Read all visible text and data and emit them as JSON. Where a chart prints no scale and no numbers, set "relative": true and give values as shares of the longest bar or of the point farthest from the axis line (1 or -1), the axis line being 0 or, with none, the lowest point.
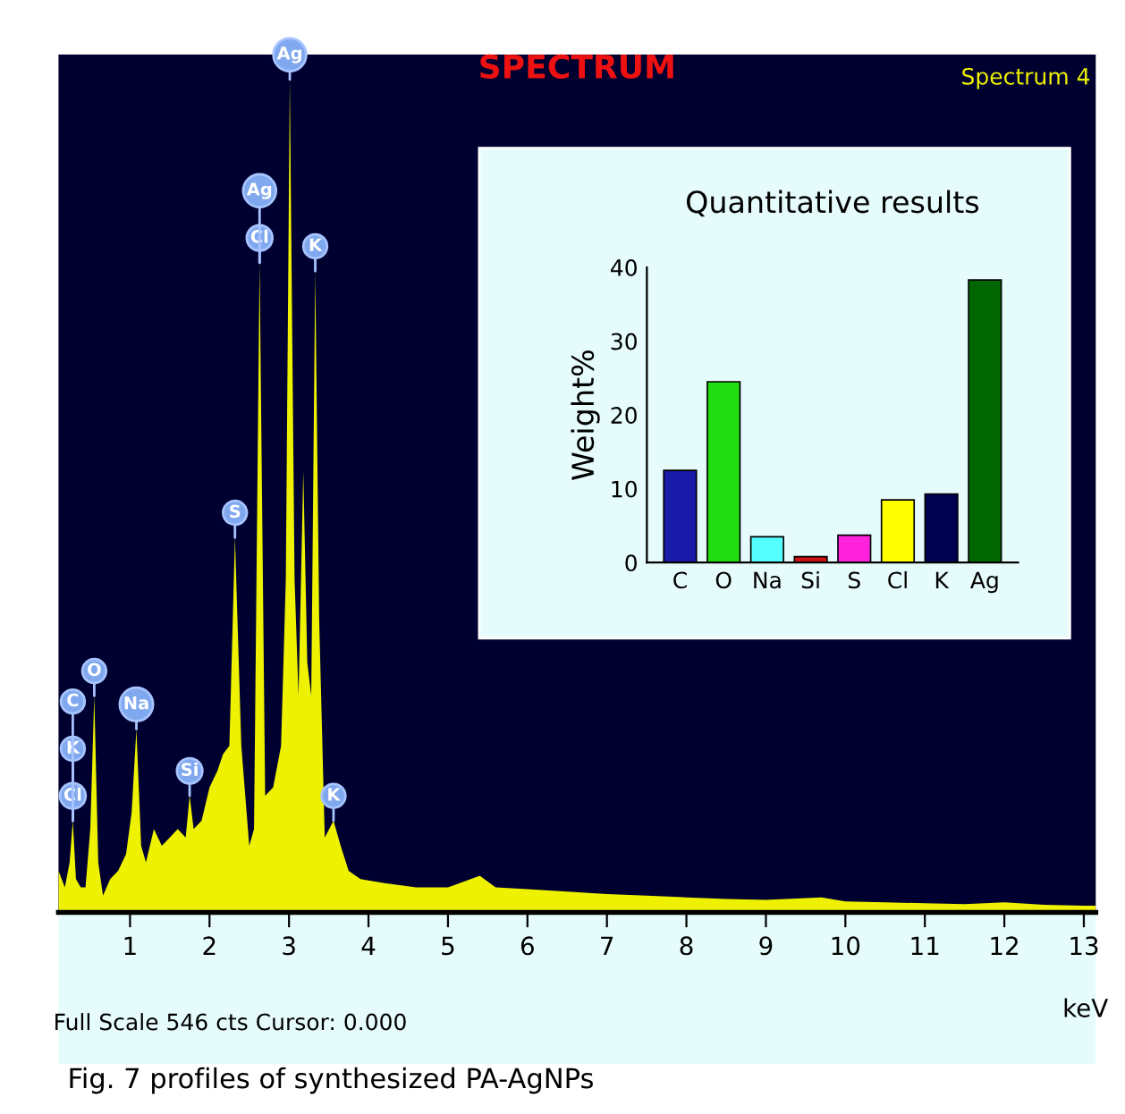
{
  "chart_data": [
    {
      "type": "area",
      "title": "SPECTRUM",
      "xlabel": "keV",
      "relative": true,
      "xlim": [
        0.1,
        13.15
      ],
      "xticks": [
        1,
        2,
        3,
        4,
        5,
        6,
        7,
        8,
        9,
        10,
        11,
        12,
        13
      ],
      "x": [
        0.1,
        0.18,
        0.24,
        0.28,
        0.32,
        0.38,
        0.44,
        0.5,
        0.55,
        0.6,
        0.66,
        0.75,
        0.85,
        0.95,
        1.02,
        1.08,
        1.14,
        1.2,
        1.3,
        1.4,
        1.5,
        1.6,
        1.7,
        1.75,
        1.8,
        1.9,
        2.0,
        2.1,
        2.17,
        2.25,
        2.32,
        2.4,
        2.5,
        2.56,
        2.63,
        2.7,
        2.8,
        2.9,
        2.96,
        3.01,
        3.07,
        3.12,
        3.18,
        3.23,
        3.28,
        3.33,
        3.38,
        3.45,
        3.56,
        3.65,
        3.75,
        3.9,
        4.2,
        4.6,
        5.0,
        5.4,
        5.6,
        6.0,
        6.5,
        7.0,
        7.5,
        8.0,
        8.5,
        9.0,
        9.7,
        10.0,
        10.5,
        11.0,
        11.5,
        12.0,
        12.5,
        13.0,
        13.15
      ],
      "series": [
        {
          "color": "#eef200",
          "values": [
            0.05,
            0.03,
            0.06,
            0.11,
            0.04,
            0.03,
            0.03,
            0.1,
            0.26,
            0.06,
            0.02,
            0.04,
            0.05,
            0.07,
            0.12,
            0.22,
            0.08,
            0.06,
            0.1,
            0.08,
            0.09,
            0.1,
            0.09,
            0.14,
            0.1,
            0.11,
            0.15,
            0.17,
            0.19,
            0.2,
            0.45,
            0.2,
            0.08,
            0.1,
            0.78,
            0.14,
            0.15,
            0.2,
            0.4,
            1.0,
            0.4,
            0.26,
            0.53,
            0.3,
            0.26,
            0.77,
            0.35,
            0.09,
            0.11,
            0.08,
            0.05,
            0.04,
            0.035,
            0.03,
            0.03,
            0.044,
            0.03,
            0.028,
            0.025,
            0.022,
            0.02,
            0.018,
            0.016,
            0.015,
            0.018,
            0.013,
            0.012,
            0.011,
            0.01,
            0.012,
            0.009,
            0.008,
            0.008
          ]
        }
      ],
      "annotations": [
        {
          "text": "Cl",
          "x": 0.28,
          "y": 0.11
        },
        {
          "text": "K",
          "x": 0.28,
          "y": 0.11
        },
        {
          "text": "C",
          "x": 0.28,
          "y": 0.11
        },
        {
          "text": "O",
          "x": 0.55,
          "y": 0.26
        },
        {
          "text": "Na",
          "x": 1.08,
          "y": 0.22
        },
        {
          "text": "Si",
          "x": 1.75,
          "y": 0.14
        },
        {
          "text": "S",
          "x": 2.32,
          "y": 0.45
        },
        {
          "text": "Cl",
          "x": 2.63,
          "y": 0.78
        },
        {
          "text": "Ag",
          "x": 2.63,
          "y": 0.78
        },
        {
          "text": "Ag",
          "x": 3.01,
          "y": 1.0
        },
        {
          "text": "K",
          "x": 3.33,
          "y": 0.77
        },
        {
          "text": "K",
          "x": 3.56,
          "y": 0.11
        },
        "Spectrum 4",
        "Full Scale 546 cts Cursor: 0.000",
        "Fig. 7 profiles of synthesized PA-AgNPs"
      ]
    },
    {
      "type": "bar",
      "title": "Quantitative results",
      "ylabel": "Weight%",
      "categories": [
        "C",
        "O",
        "Na",
        "Si",
        "S",
        "Cl",
        "K",
        "Ag"
      ],
      "values": [
        12.5,
        24.5,
        3.5,
        0.8,
        3.7,
        8.5,
        9.3,
        38.3
      ],
      "colors": [
        "#1a1aa8",
        "#22dd11",
        "#55ffff",
        "#cc1111",
        "#ff22dd",
        "#ffff00",
        "#000050",
        "#006600"
      ],
      "ylim": [
        0,
        40
      ],
      "yticks": [
        0,
        10,
        20,
        30,
        40
      ]
    }
  ]
}
